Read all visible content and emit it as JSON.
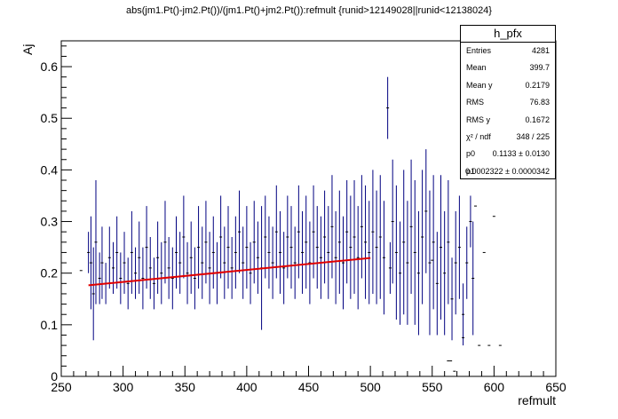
{
  "title": "abs(jm1.Pt()-jm2.Pt())/(jm1.Pt()+jm2.Pt()):refmult {runid>12149028||runid<12138024}",
  "stats_box": {
    "name": "h_pfx",
    "rows": [
      {
        "key": "Entries",
        "value": "4281"
      },
      {
        "key": "Mean",
        "value": "399.7"
      },
      {
        "key": "Mean y",
        "value": "0.2179"
      },
      {
        "key": "RMS",
        "value": "76.83"
      },
      {
        "key": "RMS y",
        "value": "0.1672"
      },
      {
        "key": "χ² / ndf",
        "value": "348 / 225"
      },
      {
        "key": "p0",
        "value": "0.1133 ± 0.0130"
      },
      {
        "key": "p1",
        "value": "0.0002322 ± 0.0000342"
      }
    ]
  },
  "chart_data": {
    "type": "scatter",
    "xlabel": "refmult",
    "ylabel": "Aj",
    "xlim": [
      250,
      650
    ],
    "ylim": [
      0,
      0.65
    ],
    "x_ticks": [
      250,
      300,
      350,
      400,
      450,
      500,
      550,
      600,
      650
    ],
    "x_tick_labels": [
      "250",
      "300",
      "350",
      "400",
      "450",
      "500",
      "550",
      "600",
      "650"
    ],
    "y_ticks": [
      0,
      0.1,
      0.2,
      0.3,
      0.4,
      0.5,
      0.6
    ],
    "y_tick_labels": [
      "0",
      "0.1",
      "0.2",
      "0.3",
      "0.4",
      "0.5",
      "0.6"
    ],
    "marker_color": "#000080",
    "fit_color": "#e00000",
    "fit": {
      "type": "linear",
      "p0": 0.1133,
      "p1": 0.0002322,
      "x_range": [
        272,
        500
      ]
    },
    "series": [
      {
        "points": [
          [
            266,
            0.205,
            0.0
          ],
          [
            272,
            0.24,
            0.04
          ],
          [
            274,
            0.22,
            0.09
          ],
          [
            276,
            0.16,
            0.09
          ],
          [
            278,
            0.26,
            0.12
          ],
          [
            281,
            0.19,
            0.05
          ],
          [
            283,
            0.22,
            0.07
          ],
          [
            286,
            0.18,
            0.04
          ],
          [
            289,
            0.23,
            0.06
          ],
          [
            292,
            0.21,
            0.05
          ],
          [
            295,
            0.24,
            0.07
          ],
          [
            298,
            0.19,
            0.05
          ],
          [
            301,
            0.22,
            0.06
          ],
          [
            304,
            0.18,
            0.05
          ],
          [
            307,
            0.24,
            0.08
          ],
          [
            310,
            0.2,
            0.05
          ],
          [
            313,
            0.23,
            0.07
          ],
          [
            316,
            0.19,
            0.06
          ],
          [
            319,
            0.25,
            0.08
          ],
          [
            322,
            0.21,
            0.06
          ],
          [
            325,
            0.18,
            0.05
          ],
          [
            328,
            0.23,
            0.07
          ],
          [
            331,
            0.2,
            0.06
          ],
          [
            334,
            0.26,
            0.08
          ],
          [
            337,
            0.21,
            0.06
          ],
          [
            340,
            0.19,
            0.06
          ],
          [
            343,
            0.24,
            0.07
          ],
          [
            346,
            0.22,
            0.06
          ],
          [
            349,
            0.27,
            0.08
          ],
          [
            352,
            0.2,
            0.06
          ],
          [
            355,
            0.23,
            0.07
          ],
          [
            358,
            0.19,
            0.06
          ],
          [
            361,
            0.25,
            0.08
          ],
          [
            364,
            0.22,
            0.07
          ],
          [
            367,
            0.26,
            0.08
          ],
          [
            370,
            0.21,
            0.07
          ],
          [
            373,
            0.24,
            0.07
          ],
          [
            376,
            0.2,
            0.06
          ],
          [
            379,
            0.27,
            0.08
          ],
          [
            382,
            0.22,
            0.07
          ],
          [
            385,
            0.25,
            0.08
          ],
          [
            388,
            0.21,
            0.06
          ],
          [
            391,
            0.24,
            0.07
          ],
          [
            394,
            0.28,
            0.08
          ],
          [
            397,
            0.22,
            0.07
          ],
          [
            400,
            0.25,
            0.08
          ],
          [
            403,
            0.2,
            0.06
          ],
          [
            406,
            0.26,
            0.08
          ],
          [
            409,
            0.23,
            0.07
          ],
          [
            412,
            0.21,
            0.12
          ],
          [
            415,
            0.27,
            0.08
          ],
          [
            418,
            0.24,
            0.07
          ],
          [
            421,
            0.22,
            0.07
          ],
          [
            424,
            0.28,
            0.09
          ],
          [
            427,
            0.24,
            0.08
          ],
          [
            430,
            0.21,
            0.07
          ],
          [
            433,
            0.27,
            0.08
          ],
          [
            436,
            0.25,
            0.08
          ],
          [
            439,
            0.22,
            0.07
          ],
          [
            442,
            0.28,
            0.09
          ],
          [
            445,
            0.24,
            0.08
          ],
          [
            448,
            0.26,
            0.09
          ],
          [
            451,
            0.22,
            0.08
          ],
          [
            454,
            0.28,
            0.09
          ],
          [
            457,
            0.25,
            0.08
          ],
          [
            460,
            0.23,
            0.08
          ],
          [
            463,
            0.27,
            0.09
          ],
          [
            466,
            0.24,
            0.09
          ],
          [
            469,
            0.29,
            0.1
          ],
          [
            472,
            0.23,
            0.09
          ],
          [
            475,
            0.26,
            0.1
          ],
          [
            478,
            0.22,
            0.09
          ],
          [
            481,
            0.28,
            0.1
          ],
          [
            484,
            0.25,
            0.1
          ],
          [
            487,
            0.27,
            0.11
          ],
          [
            490,
            0.23,
            0.1
          ],
          [
            493,
            0.29,
            0.1
          ],
          [
            496,
            0.26,
            0.11
          ],
          [
            499,
            0.24,
            0.1
          ],
          [
            502,
            0.28,
            0.12
          ],
          [
            505,
            0.25,
            0.11
          ],
          [
            508,
            0.27,
            0.12
          ],
          [
            511,
            0.23,
            0.11
          ],
          [
            514,
            0.52,
            0.06
          ],
          [
            516,
            0.21,
            0.05
          ],
          [
            518,
            0.3,
            0.12
          ],
          [
            521,
            0.24,
            0.13
          ],
          [
            524,
            0.2,
            0.1
          ],
          [
            527,
            0.26,
            0.14
          ],
          [
            530,
            0.22,
            0.12
          ],
          [
            533,
            0.29,
            0.13
          ],
          [
            536,
            0.24,
            0.14
          ],
          [
            539,
            0.2,
            0.12
          ],
          [
            542,
            0.27,
            0.13
          ],
          [
            545,
            0.32,
            0.12
          ],
          [
            548,
            0.22,
            0.14
          ],
          [
            551,
            0.26,
            0.13
          ],
          [
            554,
            0.18,
            0.1
          ],
          [
            557,
            0.25,
            0.14
          ],
          [
            560,
            0.2,
            0.12
          ],
          [
            563,
            0.26,
            0.12
          ],
          [
            566,
            0.15,
            0.08
          ],
          [
            569,
            0.22,
            0.1
          ],
          [
            572,
            0.25,
            0.1
          ],
          [
            575,
            0.12,
            0.06
          ],
          [
            578,
            0.22,
            0.07
          ],
          [
            581,
            0.3,
            0.05
          ],
          [
            583,
            0.19,
            0.11
          ],
          [
            585,
            0.33,
            0.0
          ],
          [
            588,
            0.06,
            0.0
          ],
          [
            592,
            0.24,
            0.0
          ],
          [
            596,
            0.06,
            0.0
          ],
          [
            600,
            0.31,
            0.0
          ],
          [
            605,
            0.06,
            0.0
          ],
          [
            563,
            0.03,
            0.0
          ],
          [
            568,
            0.01,
            0.0
          ],
          [
            575,
            0.075,
            0.0
          ],
          [
            550,
            0.225,
            0.0
          ],
          [
            565,
            0.03,
            0.0
          ]
        ]
      }
    ]
  }
}
